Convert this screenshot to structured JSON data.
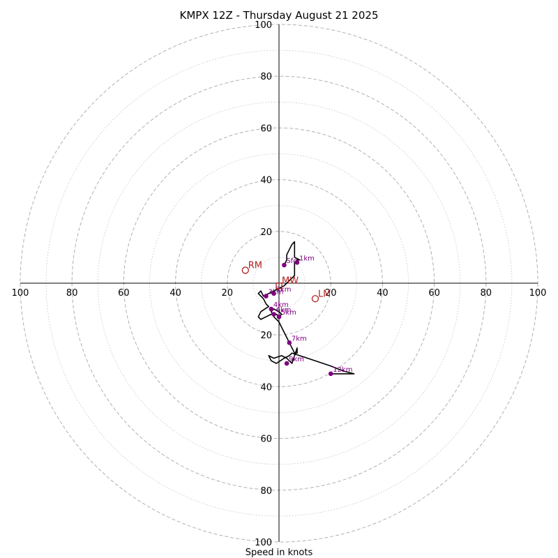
{
  "chart_data": {
    "type": "hodograph",
    "title": "KMPX 12Z - Thursday August 21 2025",
    "xlabel": "Speed in knots",
    "range": [
      -100,
      100
    ],
    "rings_major": [
      20,
      40,
      60,
      80,
      100
    ],
    "rings_minor": [
      10,
      30,
      50,
      70,
      90
    ],
    "tick_labels": [
      "100",
      "80",
      "60",
      "40",
      "20"
    ],
    "colors": {
      "axis": "#000000",
      "ring": "#b0b0b0",
      "trace": "#000000",
      "height_marker": "#800080",
      "motion_marker": "#b22222"
    },
    "trace": [
      [
        2,
        7
      ],
      [
        3,
        9
      ],
      [
        3,
        11
      ],
      [
        4,
        13
      ],
      [
        5,
        15
      ],
      [
        6,
        16
      ],
      [
        6,
        12
      ],
      [
        6,
        10
      ],
      [
        8,
        9
      ],
      [
        7,
        9
      ],
      [
        6,
        8
      ],
      [
        6,
        6
      ],
      [
        6,
        4
      ],
      [
        6,
        3
      ],
      [
        5,
        2
      ],
      [
        4,
        1
      ],
      [
        3,
        0
      ],
      [
        2,
        -1
      ],
      [
        0,
        -2
      ],
      [
        -2,
        -3
      ],
      [
        -4,
        -4
      ],
      [
        -6,
        -5
      ],
      [
        -7,
        -3
      ],
      [
        -8,
        -4
      ],
      [
        -6,
        -6
      ],
      [
        -5,
        -8
      ],
      [
        -4,
        -9
      ],
      [
        -7,
        -11
      ],
      [
        -8,
        -13
      ],
      [
        -7,
        -14
      ],
      [
        -5,
        -13
      ],
      [
        -3,
        -12
      ],
      [
        -1,
        -12
      ],
      [
        0,
        -13
      ],
      [
        1,
        -12
      ],
      [
        0,
        -11
      ],
      [
        -2,
        -10
      ],
      [
        -3,
        -11
      ],
      [
        -2,
        -13
      ],
      [
        -1,
        -14
      ],
      [
        0,
        -15
      ],
      [
        1,
        -17
      ],
      [
        2,
        -19
      ],
      [
        3,
        -21
      ],
      [
        4,
        -23
      ],
      [
        5,
        -25
      ],
      [
        6,
        -27
      ],
      [
        7,
        -27
      ],
      [
        7,
        -25
      ],
      [
        6,
        -28
      ],
      [
        5,
        -31
      ],
      [
        4,
        -30
      ],
      [
        3,
        -29
      ],
      [
        1,
        -28
      ],
      [
        -2,
        -29
      ],
      [
        -4,
        -28
      ],
      [
        -3,
        -30
      ],
      [
        -1,
        -31
      ],
      [
        2,
        -29
      ],
      [
        4,
        -28
      ],
      [
        5,
        -27
      ],
      [
        8,
        -28
      ],
      [
        14,
        -30
      ],
      [
        20,
        -32
      ],
      [
        25,
        -34
      ],
      [
        29,
        -35
      ],
      [
        25,
        -35
      ],
      [
        20,
        -35
      ]
    ],
    "height_markers": [
      {
        "label": "1km",
        "u": 7,
        "v": 8
      },
      {
        "label": "Sfc",
        "u": 2,
        "v": 7
      },
      {
        "label": "2km",
        "u": -2,
        "v": -4
      },
      {
        "label": "3km",
        "u": -5,
        "v": -5
      },
      {
        "label": "4km",
        "u": -3,
        "v": -10
      },
      {
        "label": "5km",
        "u": 0,
        "v": -13
      },
      {
        "label": "6km",
        "u": -2,
        "v": -12
      },
      {
        "label": "7km",
        "u": 4,
        "v": -23
      },
      {
        "label": "9km",
        "u": 3,
        "v": -31
      },
      {
        "label": "12km",
        "u": 20,
        "v": -35
      }
    ],
    "motion_markers": [
      {
        "label": "RM",
        "u": -13,
        "v": 5,
        "shape": "circle"
      },
      {
        "label": "LM",
        "u": 14,
        "v": -6,
        "shape": "circle"
      },
      {
        "label": "MW",
        "u": 0,
        "v": -1,
        "shape": "square"
      }
    ]
  }
}
